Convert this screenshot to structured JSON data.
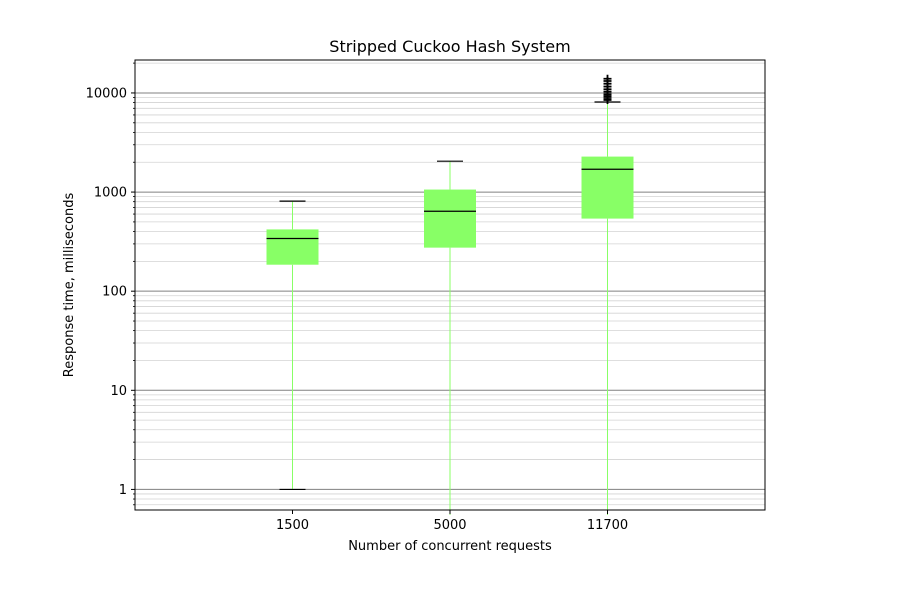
{
  "chart_data": {
    "type": "boxplot",
    "title": "Stripped Cuckoo Hash System",
    "xlabel": "Number of concurrent requests",
    "ylabel": "Response time, milliseconds",
    "y_scale": "log",
    "ylim": [
      0.62,
      21500
    ],
    "y_ticks": [
      1,
      10,
      100,
      1000,
      10000
    ],
    "y_tick_labels": [
      "1",
      "10",
      "100",
      "1000",
      "10000"
    ],
    "grid": {
      "major": true,
      "minor": true
    },
    "categories": [
      "1500",
      "5000",
      "11700"
    ],
    "boxes": [
      {
        "label": "1500",
        "whisker_low": 1,
        "q1": 185,
        "median": 340,
        "q3": 420,
        "whisker_high": 810,
        "outliers": []
      },
      {
        "label": "5000",
        "whisker_low": 0.5,
        "q1": 275,
        "median": 640,
        "q3": 1060,
        "whisker_high": 2050,
        "outliers": []
      },
      {
        "label": "11700",
        "whisker_low": 0.5,
        "q1": 540,
        "median": 1700,
        "q3": 2280,
        "whisker_high": 8100,
        "outliers": [
          8500,
          8900,
          9300,
          9700,
          10300,
          10900,
          11600,
          12400,
          13200,
          13900
        ]
      }
    ],
    "colors": {
      "box_fill": "#88ff66",
      "whisker": "#88ff66",
      "median": "#000000",
      "cap": "#000000",
      "outlier": "#000000",
      "grid_major": "#808080",
      "grid_minor": "#d3d3d3"
    }
  }
}
